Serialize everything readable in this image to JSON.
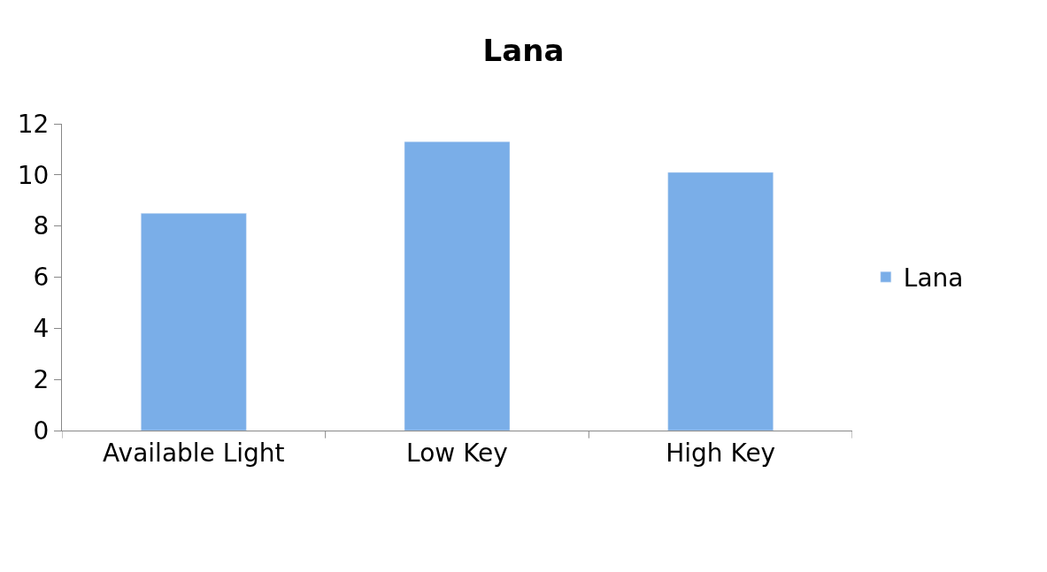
{
  "chart_data": {
    "type": "bar",
    "title": "Lana",
    "categories": [
      "Available Light",
      "Low Key",
      "High Key"
    ],
    "series": [
      {
        "name": "Lana",
        "color": "#7aaee8",
        "values": [
          8.5,
          11.3,
          10.1
        ]
      }
    ],
    "ylim": [
      0,
      12
    ],
    "yticks": [
      0,
      2,
      4,
      6,
      8,
      10,
      12
    ],
    "legend": "right"
  }
}
